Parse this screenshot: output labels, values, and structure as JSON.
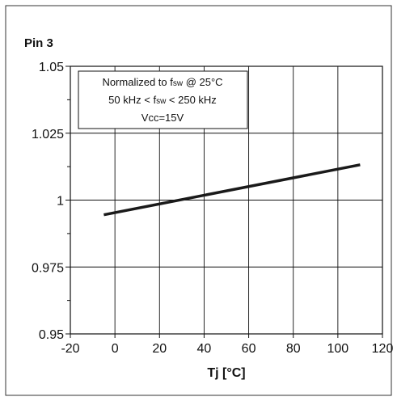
{
  "chart_data": {
    "type": "line",
    "title": "Pin 3",
    "xlabel": "Tj [°C]",
    "ylabel": "",
    "xlim": [
      -20,
      120
    ],
    "ylim": [
      0.95,
      1.05
    ],
    "x_ticks": [
      -20,
      0,
      20,
      40,
      60,
      80,
      100,
      120
    ],
    "x_tick_labels": [
      "-20",
      "0",
      "20",
      "40",
      "60",
      "80",
      "100",
      "120"
    ],
    "y_ticks": [
      0.95,
      0.975,
      1.0,
      1.025,
      1.05
    ],
    "y_tick_labels": [
      "0.95",
      "0.975",
      "1",
      "1.025",
      "1.05"
    ],
    "y_minor_ticks": [
      0.9625,
      0.9875,
      1.0125,
      1.0375
    ],
    "grid": true,
    "series": [
      {
        "x": [
          -5,
          110
        ],
        "y": [
          0.9945,
          1.0132
        ]
      }
    ],
    "annotation": {
      "line1_prefix": "Normalized to f",
      "line1_sub": "sw",
      "line1_suffix": "  @ 25°C",
      "line2_prefix": "50 kHz < f",
      "line2_sub": "sw",
      "line2_suffix": " < 250 kHz",
      "line3": "Vcc=15V"
    }
  }
}
